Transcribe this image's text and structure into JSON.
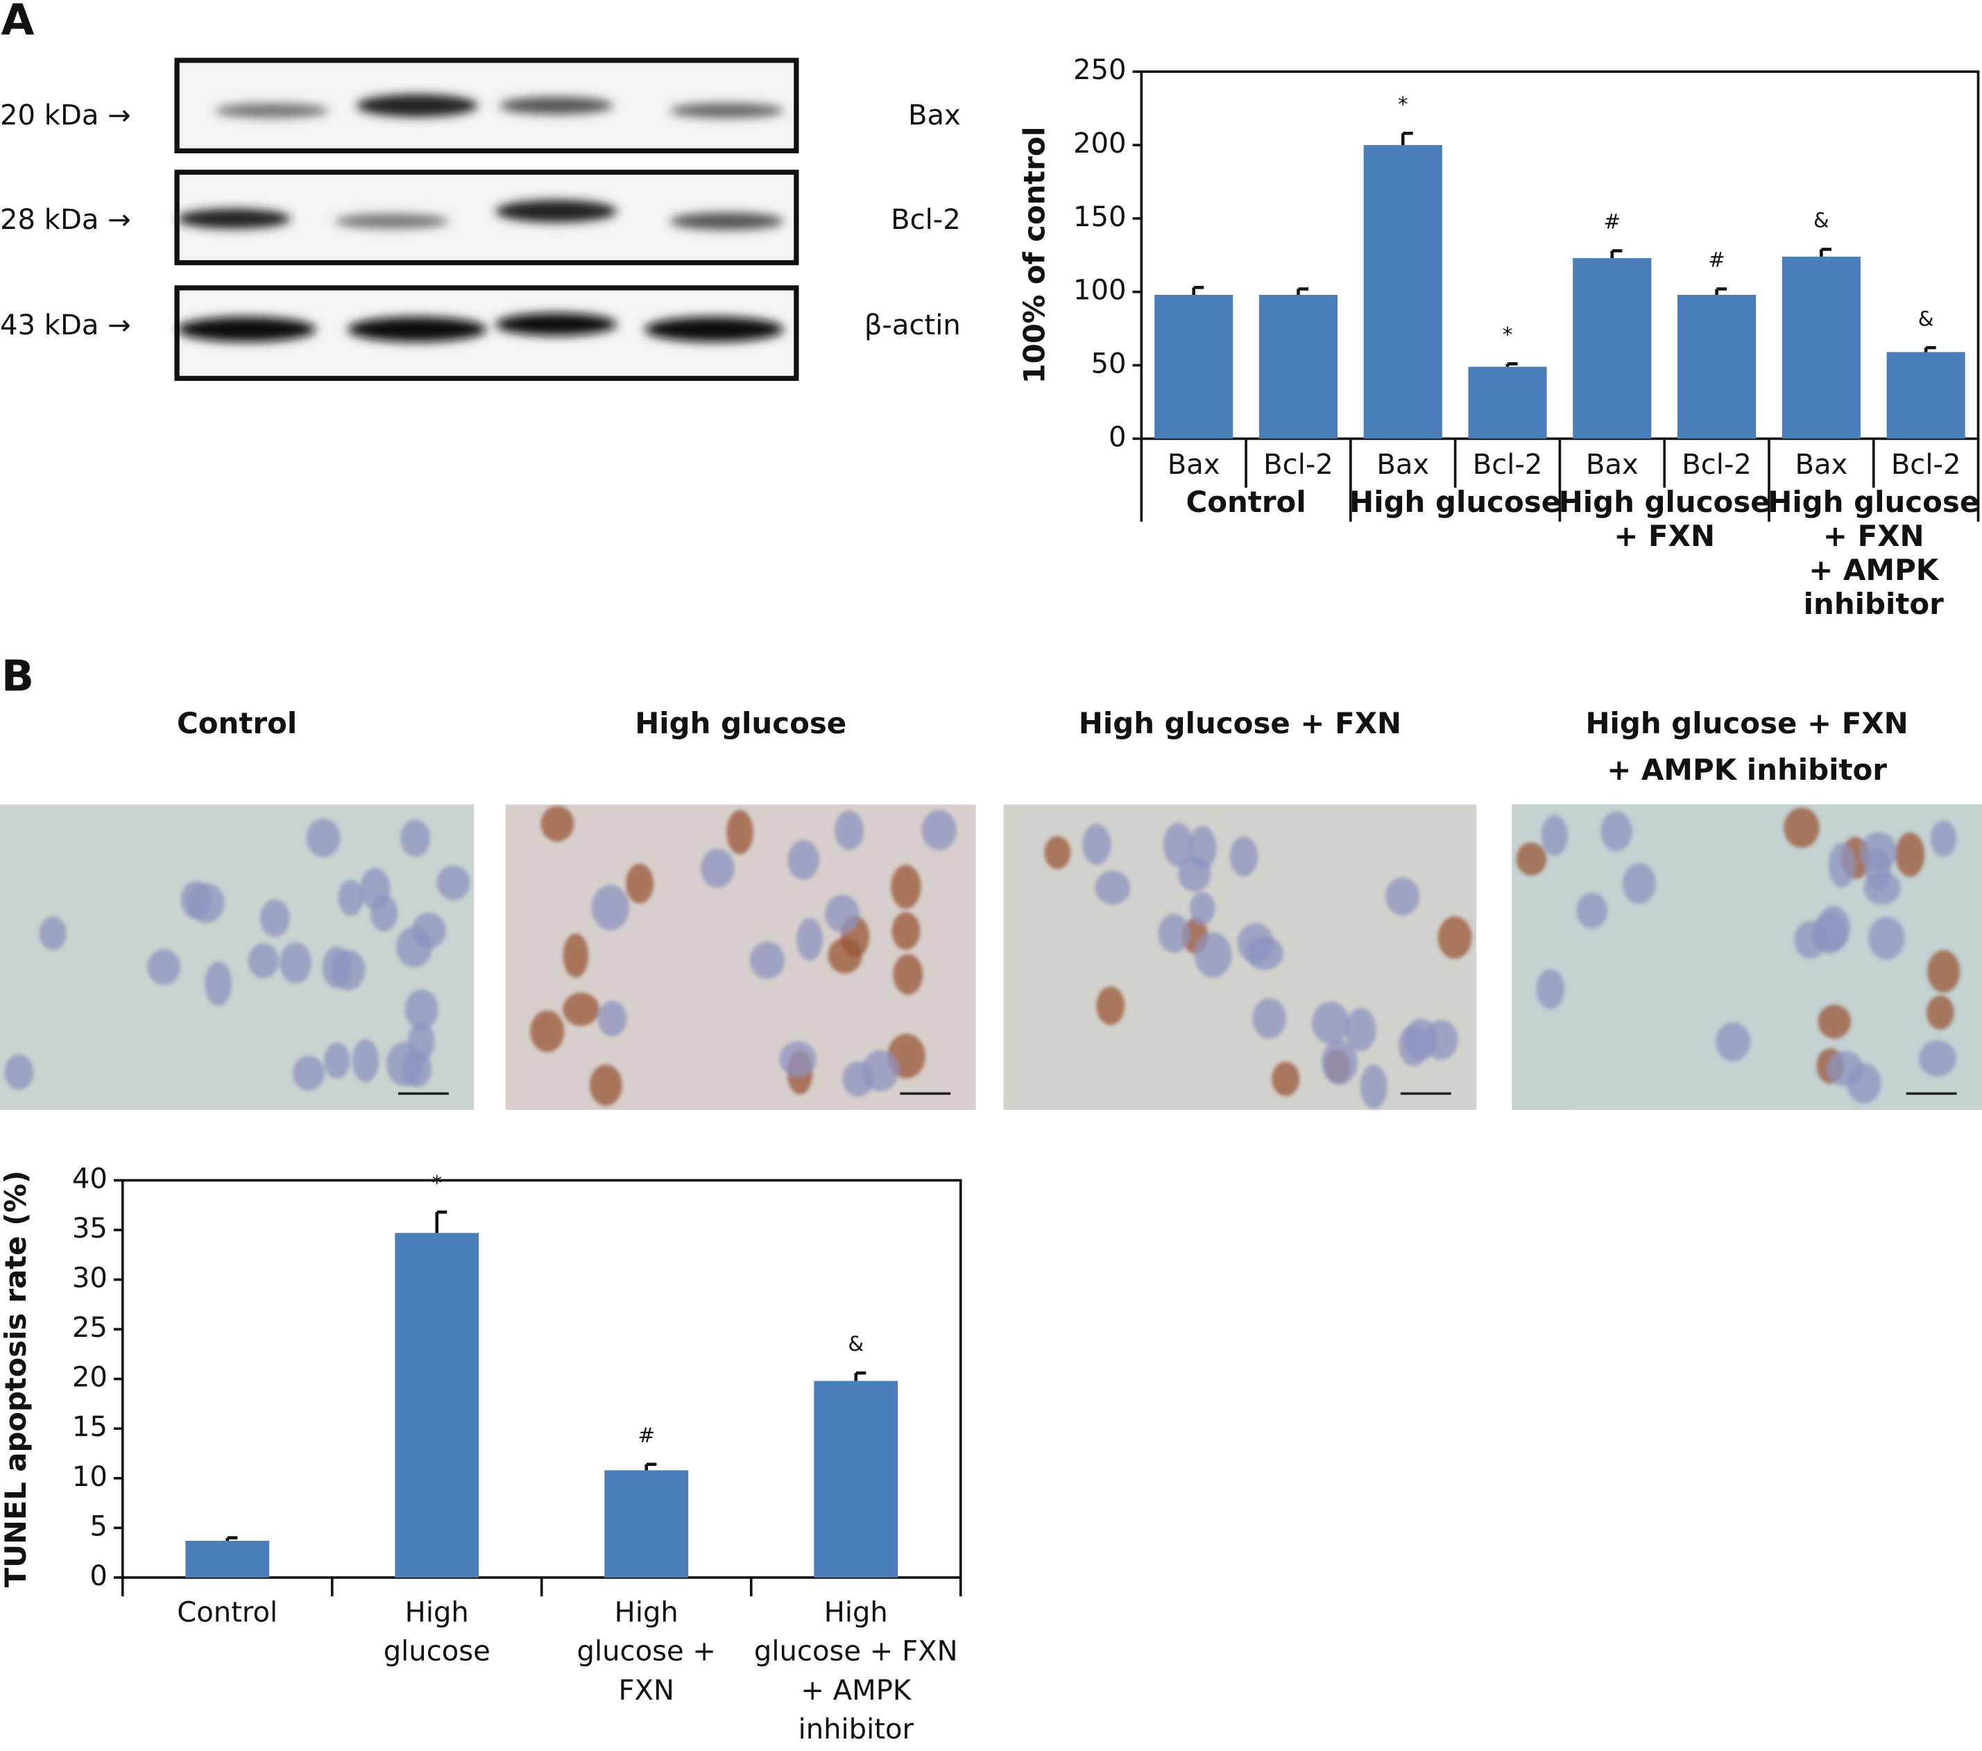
{
  "panels": [
    "A",
    "B"
  ],
  "blot": {
    "markers": [
      "20 kDa →",
      "28 kDa →",
      "43 kDa →"
    ],
    "proteins": [
      "Bax",
      "Bcl-2",
      "β-actin"
    ]
  },
  "micrographs": {
    "titles": [
      [
        "Control"
      ],
      [
        "High glucose"
      ],
      [
        "High glucose + FXN"
      ],
      [
        "High glucose + FXN",
        "+ AMPK inhibitor"
      ]
    ]
  },
  "chart_data": [
    {
      "type": "bar",
      "ylabel": "100% of control",
      "categories": [
        "Bax",
        "Bcl-2",
        "Bax",
        "Bcl-2",
        "Bax",
        "Bcl-2",
        "Bax",
        "Bcl-2"
      ],
      "groups": [
        [
          "Control"
        ],
        [
          "High glucose"
        ],
        [
          "High glucose",
          "+ FXN"
        ],
        [
          "High glucose",
          "+ FXN",
          "+ AMPK",
          "inhibitor"
        ]
      ],
      "values": [
        98,
        98,
        200,
        49,
        123,
        98,
        124,
        59
      ],
      "errors": [
        5,
        4,
        8,
        2,
        5,
        4,
        5,
        3
      ],
      "annotations": [
        null,
        null,
        "*",
        "*",
        "#",
        "#",
        "&",
        "&"
      ],
      "color": "#4a7ebb",
      "ylim": [
        0,
        250
      ],
      "yticks": [
        0,
        50,
        100,
        150,
        200,
        250
      ]
    },
    {
      "type": "bar",
      "ylabel": "TUNEL apoptosis rate (%)",
      "categories": [
        [
          "Control"
        ],
        [
          "High",
          "glucose"
        ],
        [
          "High",
          "glucose +",
          "FXN"
        ],
        [
          "High",
          "glucose + FXN",
          "+ AMPK",
          "inhibitor"
        ]
      ],
      "values": [
        3.7,
        34.7,
        10.8,
        19.8
      ],
      "errors": [
        0.3,
        2.1,
        0.6,
        0.8
      ],
      "annotations": [
        null,
        "*",
        "#",
        "&"
      ],
      "color": "#4a7ebb",
      "ylim": [
        0,
        40
      ],
      "yticks": [
        0,
        5,
        10,
        15,
        20,
        25,
        30,
        35,
        40
      ]
    }
  ]
}
